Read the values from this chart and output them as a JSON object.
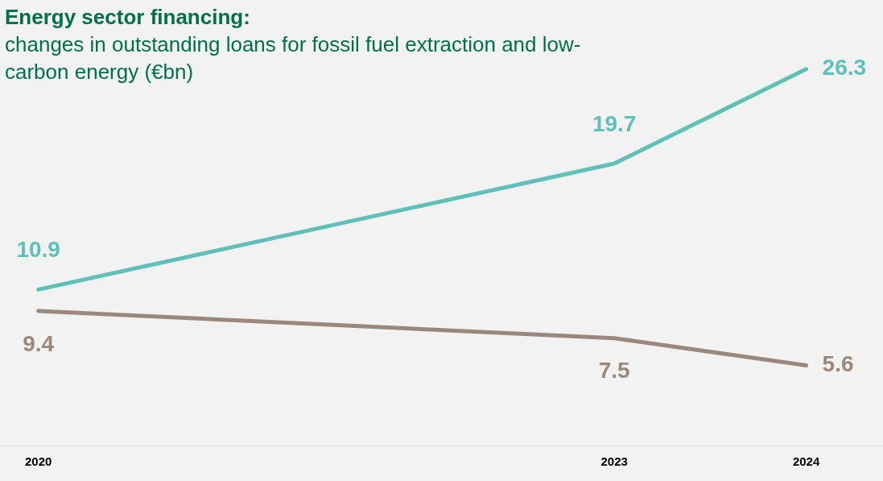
{
  "chart_data": {
    "type": "line",
    "title": "Energy sector financing:",
    "subtitle": "changes in outstanding loans for fossil fuel extraction and low-carbon energy (€bn)",
    "x": [
      2020,
      2023,
      2024
    ],
    "series": [
      {
        "color": "#5fc0b9",
        "values": [
          10.9,
          19.7,
          26.3
        ]
      },
      {
        "color": "#9a887c",
        "values": [
          9.4,
          7.5,
          5.6
        ]
      }
    ],
    "xlim": [
      2019.8,
      2024.4
    ],
    "xticks": [
      2020,
      2023,
      2024
    ],
    "tick_labels": "x",
    "grid": false,
    "legend": false,
    "data_labels": true,
    "marker": "none",
    "line_style": "solid"
  }
}
